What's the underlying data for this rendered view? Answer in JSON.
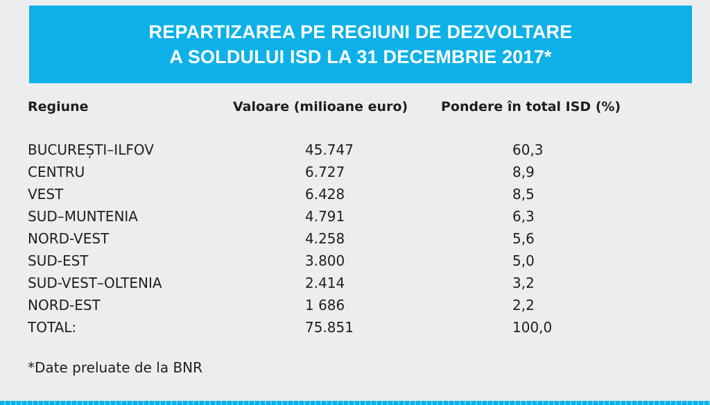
{
  "title": {
    "line1": "REPARTIZAREA PE REGIUNI DE DEZVOLTARE",
    "line2": "A SOLDULUI ISD LA 31 DECEMBRIE 2017*"
  },
  "table": {
    "headers": [
      "Regiune",
      "Valoare (milioane euro)",
      "Pondere în total ISD (%)"
    ],
    "rows": [
      {
        "region": "BUCUREȘTI–ILFOV",
        "value": "45.747",
        "share": "60,3"
      },
      {
        "region": "CENTRU",
        "value": "6.727",
        "share": "8,9"
      },
      {
        "region": "VEST",
        "value": "6.428",
        "share": "8,5"
      },
      {
        "region": "SUD–MUNTENIA",
        "value": "4.791",
        "share": "6,3"
      },
      {
        "region": "NORD-VEST",
        "value": "4.258",
        "share": "5,6"
      },
      {
        "region": "SUD-EST",
        "value": "3.800",
        "share": "5,0"
      },
      {
        "region": "SUD-VEST–OLTENIA",
        "value": "2.414",
        "share": "3,2"
      },
      {
        "region": "NORD-EST",
        "value": "1 686",
        "share": "2,2"
      },
      {
        "region": "TOTAL:",
        "value": "75.851",
        "share": "100,0"
      }
    ]
  },
  "footnote": "*Date preluate de la BNR",
  "colors": {
    "banner": "#0db1e8",
    "background": "#ecedee",
    "text": "#1e1e1e"
  }
}
